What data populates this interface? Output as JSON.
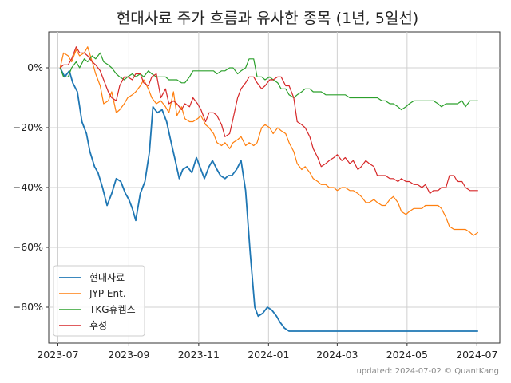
{
  "chart_data": {
    "type": "line",
    "title": "현대사료 주가 흐름과 유사한 종목 (1년, 5일선)",
    "xlabel": "",
    "ylabel": "",
    "x_ticks": [
      "2023-07",
      "2023-09",
      "2023-11",
      "2024-01",
      "2024-03",
      "2024-05",
      "2024-07"
    ],
    "y_ticks": [
      "0%",
      "−20%",
      "−40%",
      "−60%",
      "−80%"
    ],
    "xlim": [
      "2023-06-23",
      "2024-07-21"
    ],
    "ylim": [
      -92,
      12
    ],
    "grid": true,
    "legend_position": "lower-left",
    "series": [
      {
        "name": "현대사료",
        "color": "#1f77b4",
        "x": [
          "2023-07-03",
          "2023-07-07",
          "2023-07-11",
          "2023-07-14",
          "2023-07-18",
          "2023-07-22",
          "2023-07-26",
          "2023-07-29",
          "2023-08-02",
          "2023-08-05",
          "2023-08-09",
          "2023-08-13",
          "2023-08-17",
          "2023-08-21",
          "2023-08-25",
          "2023-08-29",
          "2023-09-01",
          "2023-09-04",
          "2023-09-07",
          "2023-09-11",
          "2023-09-15",
          "2023-09-19",
          "2023-09-22",
          "2023-09-26",
          "2023-09-30",
          "2023-10-04",
          "2023-10-08",
          "2023-10-11",
          "2023-10-15",
          "2023-10-18",
          "2023-10-22",
          "2023-10-26",
          "2023-10-30",
          "2023-11-03",
          "2023-11-06",
          "2023-11-10",
          "2023-11-13",
          "2023-11-17",
          "2023-11-20",
          "2023-11-24",
          "2023-11-27",
          "2023-11-30",
          "2023-12-04",
          "2023-12-08",
          "2023-12-12",
          "2023-12-16",
          "2023-12-20",
          "2023-12-23",
          "2023-12-27",
          "2023-12-31",
          "2024-01-04",
          "2024-01-08",
          "2024-01-11",
          "2024-01-15",
          "2024-01-19",
          "2024-01-22",
          "2024-01-26",
          "2024-01-29",
          "2024-02-01",
          "2024-02-03",
          "2024-02-06",
          "2024-02-09",
          "2024-02-12",
          "2024-02-16",
          "2024-02-20",
          "2024-02-24",
          "2024-02-28",
          "2024-03-03",
          "2024-03-07",
          "2024-03-10",
          "2024-03-15",
          "2024-03-22",
          "2024-04-01",
          "2024-04-15",
          "2024-05-01",
          "2024-05-15",
          "2024-06-01",
          "2024-06-15",
          "2024-07-02"
        ],
        "values": [
          0,
          -3,
          -1,
          -5,
          -8,
          -18,
          -22,
          -28,
          -33,
          -35,
          -40,
          -46,
          -42,
          -37,
          -38,
          -42,
          -44,
          -47,
          -51,
          -42,
          -38,
          -28,
          -13,
          -15,
          -14,
          -18,
          -25,
          -30,
          -37,
          -34,
          -33,
          -35,
          -30,
          -34,
          -37,
          -33,
          -31,
          -34,
          -36,
          -37,
          -36,
          -36,
          -34,
          -31,
          -41,
          -62,
          -80,
          -83,
          -82,
          -80,
          -81,
          -83,
          -85,
          -87,
          -88,
          -88,
          -88,
          -88,
          -88,
          -88,
          -88,
          -88,
          -88,
          -88,
          -88,
          -88,
          -88,
          -88,
          -88,
          -88,
          -88,
          -88,
          -88,
          -88,
          -88,
          -88,
          -88,
          -88,
          -88
        ]
      },
      {
        "name": "JYP Ent.",
        "color": "#ff7f0e",
        "x": [
          "2023-07-03",
          "2023-07-06",
          "2023-07-10",
          "2023-07-13",
          "2023-07-17",
          "2023-07-20",
          "2023-07-24",
          "2023-07-27",
          "2023-07-31",
          "2023-08-03",
          "2023-08-07",
          "2023-08-10",
          "2023-08-14",
          "2023-08-17",
          "2023-08-21",
          "2023-08-24",
          "2023-08-28",
          "2023-08-31",
          "2023-09-04",
          "2023-09-07",
          "2023-09-11",
          "2023-09-14",
          "2023-09-18",
          "2023-09-21",
          "2023-09-25",
          "2023-09-29",
          "2023-10-03",
          "2023-10-06",
          "2023-10-10",
          "2023-10-13",
          "2023-10-17",
          "2023-10-20",
          "2023-10-24",
          "2023-10-27",
          "2023-10-31",
          "2023-11-03",
          "2023-11-07",
          "2023-11-10",
          "2023-11-14",
          "2023-11-17",
          "2023-11-21",
          "2023-11-24",
          "2023-11-28",
          "2023-12-01",
          "2023-12-05",
          "2023-12-08",
          "2023-12-12",
          "2023-12-15",
          "2023-12-19",
          "2023-12-22",
          "2023-12-26",
          "2023-12-29",
          "2024-01-02",
          "2024-01-05",
          "2024-01-09",
          "2024-01-12",
          "2024-01-16",
          "2024-01-19",
          "2024-01-23",
          "2024-01-26",
          "2024-01-30",
          "2024-02-02",
          "2024-02-06",
          "2024-02-09",
          "2024-02-13",
          "2024-02-16",
          "2024-02-20",
          "2024-02-23",
          "2024-02-27",
          "2024-03-01",
          "2024-03-05",
          "2024-03-08",
          "2024-03-12",
          "2024-03-15",
          "2024-03-19",
          "2024-03-22",
          "2024-03-26",
          "2024-03-29",
          "2024-04-02",
          "2024-04-05",
          "2024-04-09",
          "2024-04-12",
          "2024-04-16",
          "2024-04-19",
          "2024-04-23",
          "2024-04-26",
          "2024-04-30",
          "2024-05-03",
          "2024-05-07",
          "2024-05-10",
          "2024-05-14",
          "2024-05-17",
          "2024-05-21",
          "2024-05-24",
          "2024-05-28",
          "2024-05-31",
          "2024-06-04",
          "2024-06-07",
          "2024-06-11",
          "2024-06-14",
          "2024-06-18",
          "2024-06-21",
          "2024-06-25",
          "2024-06-28",
          "2024-07-02"
        ],
        "values": [
          0,
          5,
          4,
          2,
          6,
          4,
          5,
          7,
          2,
          -2,
          -6,
          -12,
          -11,
          -8,
          -15,
          -14,
          -12,
          -10,
          -9,
          -8,
          -6,
          -4,
          -7,
          -10,
          -12,
          -11,
          -13,
          -15,
          -8,
          -16,
          -13,
          -17,
          -18,
          -18,
          -17,
          -16,
          -19,
          -20,
          -22,
          -25,
          -26,
          -25,
          -27,
          -25,
          -24,
          -23,
          -26,
          -25,
          -26,
          -25,
          -20,
          -19,
          -20,
          -22,
          -20,
          -21,
          -22,
          -25,
          -28,
          -32,
          -34,
          -33,
          -35,
          -37,
          -38,
          -39,
          -39,
          -40,
          -40,
          -41,
          -40,
          -40,
          -41,
          -41,
          -42,
          -43,
          -45,
          -45,
          -44,
          -45,
          -46,
          -46,
          -44,
          -43,
          -45,
          -48,
          -49,
          -48,
          -47,
          -47,
          -47,
          -46,
          -46,
          -46,
          -46,
          -47,
          -50,
          -53,
          -54,
          -54,
          -54,
          -54,
          -55,
          -56,
          -55
        ]
      },
      {
        "name": "TKG휴켐스",
        "color": "#2ca02c",
        "x": [
          "2023-07-03",
          "2023-07-06",
          "2023-07-10",
          "2023-07-13",
          "2023-07-17",
          "2023-07-20",
          "2023-07-24",
          "2023-07-27",
          "2023-07-31",
          "2023-08-03",
          "2023-08-07",
          "2023-08-10",
          "2023-08-14",
          "2023-08-17",
          "2023-08-21",
          "2023-08-24",
          "2023-08-28",
          "2023-08-31",
          "2023-09-04",
          "2023-09-07",
          "2023-09-11",
          "2023-09-14",
          "2023-09-18",
          "2023-09-21",
          "2023-09-25",
          "2023-09-29",
          "2023-10-03",
          "2023-10-06",
          "2023-10-10",
          "2023-10-13",
          "2023-10-17",
          "2023-10-20",
          "2023-10-24",
          "2023-10-27",
          "2023-10-31",
          "2023-11-03",
          "2023-11-07",
          "2023-11-10",
          "2023-11-14",
          "2023-11-17",
          "2023-11-21",
          "2023-11-24",
          "2023-11-28",
          "2023-12-01",
          "2023-12-05",
          "2023-12-08",
          "2023-12-12",
          "2023-12-15",
          "2023-12-19",
          "2023-12-22",
          "2023-12-26",
          "2023-12-29",
          "2024-01-02",
          "2024-01-05",
          "2024-01-09",
          "2024-01-12",
          "2024-01-16",
          "2024-01-19",
          "2024-01-23",
          "2024-01-26",
          "2024-01-30",
          "2024-02-02",
          "2024-02-06",
          "2024-02-09",
          "2024-02-13",
          "2024-02-16",
          "2024-02-20",
          "2024-02-23",
          "2024-02-27",
          "2024-03-01",
          "2024-03-05",
          "2024-03-08",
          "2024-03-12",
          "2024-03-15",
          "2024-03-19",
          "2024-03-22",
          "2024-03-26",
          "2024-03-29",
          "2024-04-02",
          "2024-04-05",
          "2024-04-09",
          "2024-04-12",
          "2024-04-16",
          "2024-04-19",
          "2024-04-23",
          "2024-04-26",
          "2024-04-30",
          "2024-05-03",
          "2024-05-07",
          "2024-05-10",
          "2024-05-14",
          "2024-05-17",
          "2024-05-21",
          "2024-05-24",
          "2024-05-28",
          "2024-05-31",
          "2024-06-04",
          "2024-06-07",
          "2024-06-11",
          "2024-06-14",
          "2024-06-18",
          "2024-06-21",
          "2024-06-25",
          "2024-06-28",
          "2024-07-02"
        ],
        "values": [
          0,
          -3,
          -3,
          0,
          2,
          0,
          3,
          2,
          4,
          3,
          5,
          2,
          1,
          0,
          -2,
          -3,
          -4,
          -3,
          -2,
          -3,
          -2,
          -3,
          -1,
          -2,
          -3,
          -3,
          -3,
          -4,
          -4,
          -4,
          -5,
          -5,
          -3,
          -1,
          -1,
          -1,
          -1,
          -1,
          -1,
          -2,
          -1,
          -1,
          0,
          0,
          -2,
          -1,
          0,
          3,
          3,
          -3,
          -3,
          -4,
          -3,
          -4,
          -5,
          -7,
          -7,
          -9,
          -10,
          -9,
          -8,
          -7,
          -7,
          -8,
          -8,
          -8,
          -9,
          -9,
          -9,
          -9,
          -9,
          -9,
          -10,
          -10,
          -10,
          -10,
          -10,
          -10,
          -10,
          -10,
          -11,
          -11,
          -12,
          -12,
          -13,
          -14,
          -13,
          -12,
          -11,
          -11,
          -11,
          -11,
          -11,
          -11,
          -12,
          -13,
          -12,
          -12,
          -12,
          -12,
          -11,
          -13,
          -11,
          -11,
          -11
        ]
      },
      {
        "name": "후성",
        "color": "#d62728",
        "x": [
          "2023-07-03",
          "2023-07-06",
          "2023-07-10",
          "2023-07-13",
          "2023-07-17",
          "2023-07-20",
          "2023-07-24",
          "2023-07-27",
          "2023-07-31",
          "2023-08-03",
          "2023-08-07",
          "2023-08-10",
          "2023-08-14",
          "2023-08-17",
          "2023-08-21",
          "2023-08-24",
          "2023-08-28",
          "2023-08-31",
          "2023-09-04",
          "2023-09-07",
          "2023-09-11",
          "2023-09-14",
          "2023-09-18",
          "2023-09-21",
          "2023-09-25",
          "2023-09-29",
          "2023-10-03",
          "2023-10-06",
          "2023-10-10",
          "2023-10-13",
          "2023-10-17",
          "2023-10-20",
          "2023-10-24",
          "2023-10-27",
          "2023-10-31",
          "2023-11-03",
          "2023-11-07",
          "2023-11-10",
          "2023-11-14",
          "2023-11-17",
          "2023-11-21",
          "2023-11-24",
          "2023-11-28",
          "2023-12-01",
          "2023-12-05",
          "2023-12-08",
          "2023-12-12",
          "2023-12-15",
          "2023-12-19",
          "2023-12-22",
          "2023-12-26",
          "2023-12-29",
          "2024-01-02",
          "2024-01-05",
          "2024-01-09",
          "2024-01-12",
          "2024-01-16",
          "2024-01-19",
          "2024-01-23",
          "2024-01-26",
          "2024-01-30",
          "2024-02-02",
          "2024-02-06",
          "2024-02-09",
          "2024-02-13",
          "2024-02-16",
          "2024-02-20",
          "2024-02-23",
          "2024-02-27",
          "2024-03-01",
          "2024-03-05",
          "2024-03-08",
          "2024-03-12",
          "2024-03-15",
          "2024-03-19",
          "2024-03-22",
          "2024-03-26",
          "2024-03-29",
          "2024-04-02",
          "2024-04-05",
          "2024-04-09",
          "2024-04-12",
          "2024-04-16",
          "2024-04-19",
          "2024-04-23",
          "2024-04-26",
          "2024-04-30",
          "2024-05-03",
          "2024-05-07",
          "2024-05-10",
          "2024-05-14",
          "2024-05-17",
          "2024-05-21",
          "2024-05-24",
          "2024-05-28",
          "2024-05-31",
          "2024-06-04",
          "2024-06-07",
          "2024-06-11",
          "2024-06-14",
          "2024-06-18",
          "2024-06-21",
          "2024-06-25",
          "2024-06-28",
          "2024-07-02"
        ],
        "values": [
          0,
          1,
          1,
          3,
          7,
          5,
          5,
          4,
          2,
          1,
          -1,
          -4,
          -8,
          -10,
          -11,
          -6,
          -3,
          -3,
          -4,
          -2,
          -2,
          -5,
          -6,
          -3,
          -2,
          -10,
          -7,
          -12,
          -11,
          -12,
          -14,
          -12,
          -13,
          -10,
          -12,
          -14,
          -18,
          -15,
          -15,
          -16,
          -19,
          -23,
          -22,
          -17,
          -10,
          -7,
          -5,
          -3,
          -3,
          -5,
          -7,
          -6,
          -4,
          -4,
          -3,
          -3,
          -6,
          -6,
          -10,
          -18,
          -19,
          -20,
          -23,
          -27,
          -30,
          -33,
          -32,
          -31,
          -30,
          -29,
          -31,
          -30,
          -32,
          -31,
          -34,
          -33,
          -31,
          -32,
          -33,
          -36,
          -36,
          -36,
          -37,
          -37,
          -38,
          -37,
          -38,
          -38,
          -39,
          -39,
          -40,
          -39,
          -42,
          -41,
          -41,
          -40,
          -40,
          -36,
          -36,
          -38,
          -38,
          -40,
          -41,
          -41,
          -41
        ]
      }
    ]
  },
  "footer": {
    "updated_label": "updated: 2024-07-02 © QuantKang"
  }
}
